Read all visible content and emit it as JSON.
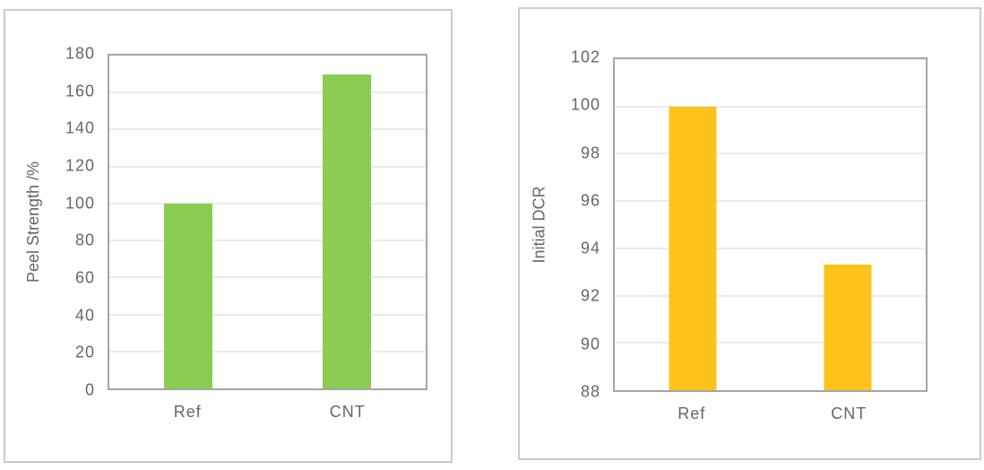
{
  "figure": {
    "description": "Two single-series bar charts comparing Ref and CNT samples"
  },
  "chart_data": [
    {
      "type": "bar",
      "title": "",
      "xlabel": "",
      "ylabel": "Peel Strength /%",
      "categories": [
        "Ref",
        "CNT"
      ],
      "values": [
        100,
        170
      ],
      "ylim": [
        0,
        180
      ],
      "ytick_step": 20,
      "yticks": [
        0,
        20,
        40,
        60,
        80,
        100,
        120,
        140,
        160,
        180
      ],
      "bar_color": "#8BCD50",
      "grid": true,
      "legend": false
    },
    {
      "type": "bar",
      "title": "",
      "xlabel": "",
      "ylabel": "Initial DCR",
      "categories": [
        "Ref",
        "CNT"
      ],
      "values": [
        100,
        93.3
      ],
      "ylim": [
        88,
        102
      ],
      "ytick_step": 2,
      "yticks": [
        88,
        90,
        92,
        94,
        96,
        98,
        100,
        102
      ],
      "bar_color": "#FCC31B",
      "grid": true,
      "legend": false
    }
  ],
  "style": {
    "bar_green": "#8BCD50",
    "bar_gold": "#FCC31B",
    "grid_color": "#EBEBEB",
    "plot_border_color": "#A5A5A5",
    "panel_border_color": "#CBCBCB",
    "text_color": "#666666"
  }
}
